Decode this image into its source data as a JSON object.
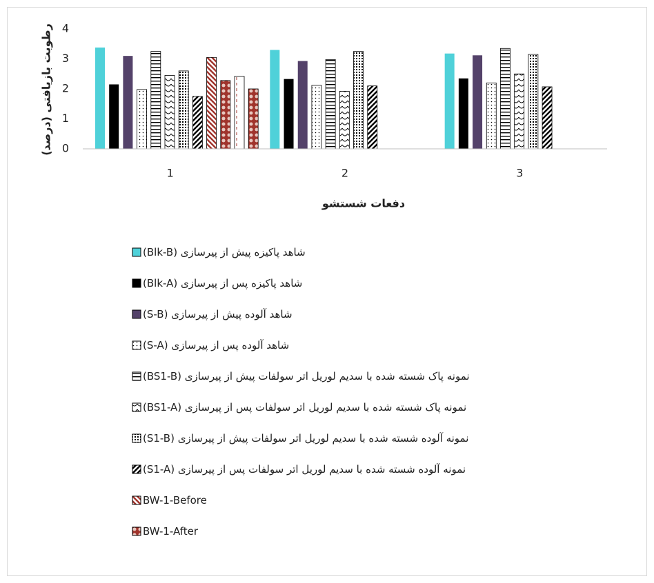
{
  "chart_data": {
    "type": "bar",
    "y_label": "رطوبت بازیافتی (درصد)",
    "x_label": "دفعات شستشو",
    "categories": [
      "1",
      "2",
      "3"
    ],
    "ylim": [
      0,
      4
    ],
    "yticks": [
      0,
      1,
      2,
      3,
      4
    ],
    "grid": false,
    "series": [
      {
        "name": "شاهد پاکیزه پیش از پیرسازی (Blk-B)",
        "color": "#4fd1d9",
        "values": [
          3.38,
          3.3,
          3.18
        ]
      },
      {
        "name": "شاهد پاکیزه پس از پیرسازی (Blk-A)",
        "color": "#000000",
        "values": [
          2.15,
          2.33,
          2.35
        ]
      },
      {
        "name": "شاهد آلوده پیش از پیرسازی (S-B)",
        "color": "#54426a",
        "values": [
          3.1,
          2.93,
          3.12
        ]
      },
      {
        "name": "شاهد آلوده پس از پیرسازی (S-A)",
        "pattern": "dots",
        "values": [
          1.98,
          2.12,
          2.2
        ]
      },
      {
        "name": "نمونه پاک شسته شده با سدیم لوریل اتر سولفات پیش از پیرسازی (BS1-B)",
        "pattern": "hlines",
        "values": [
          3.25,
          2.98,
          3.35
        ]
      },
      {
        "name": "نمونه پاک شسته شده با سدیم لوریل اتر سولفات پس از پیرسازی (BS1-A)",
        "pattern": "waves",
        "values": [
          2.45,
          1.92,
          2.5
        ]
      },
      {
        "name": "نمونه آلوده شسته شده با سدیم لوریل اتر سولفات پیش از پیرسازی (S1-B)",
        "pattern": "dense",
        "values": [
          2.6,
          3.25,
          3.15
        ]
      },
      {
        "name": "نمونه آلوده شسته شده با سدیم لوریل اتر سولفات پس از پیرسازی (S1-A)",
        "pattern": "diag",
        "values": [
          1.75,
          2.1,
          2.07
        ]
      },
      {
        "name": "BW-1-Before",
        "pattern": "reddiag",
        "values": [
          3.05,
          null,
          null
        ]
      },
      {
        "name": "BW-1-After",
        "pattern": "redcircle",
        "values": [
          2.28,
          null,
          null
        ]
      },
      {
        "pattern": "vdash",
        "values": [
          2.42,
          null,
          null
        ]
      },
      {
        "pattern": "redcircle",
        "values": [
          2.0,
          null,
          null
        ]
      }
    ]
  }
}
